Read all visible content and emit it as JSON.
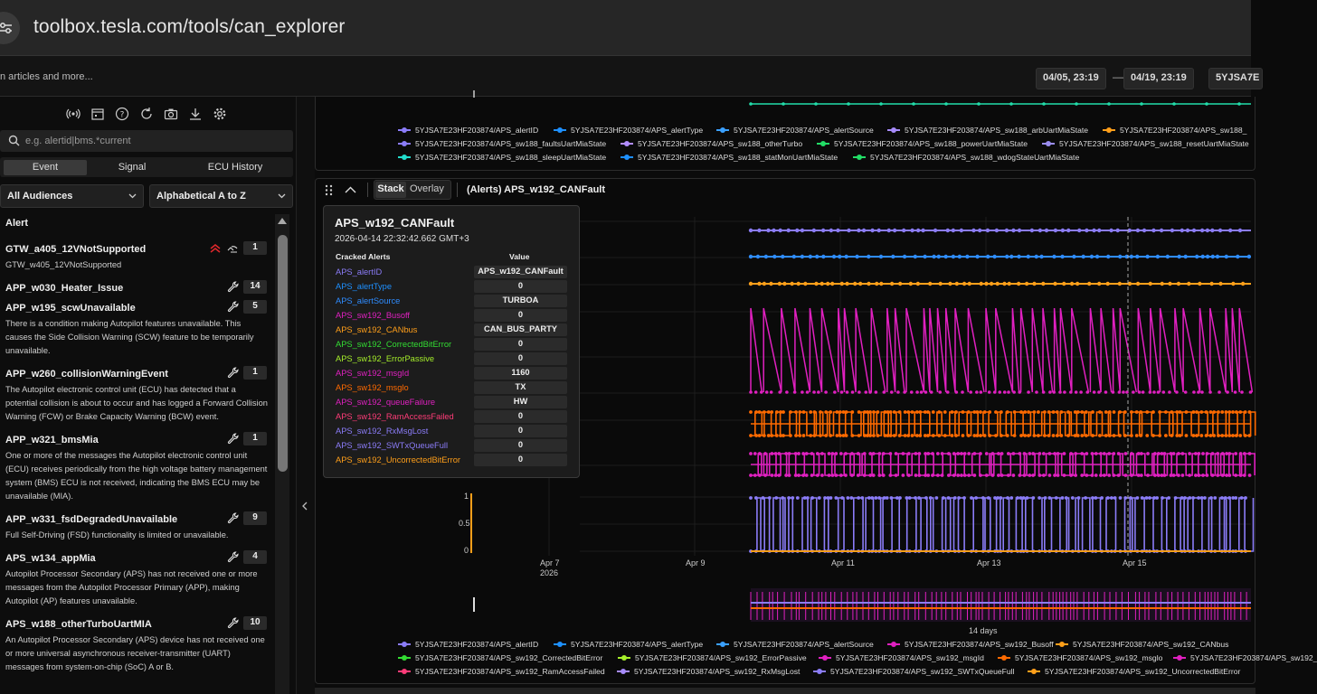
{
  "browser": {
    "url": "toolbox.tesla.com/tools/can_explorer"
  },
  "header": {
    "search_fragment": "n articles and more...",
    "date_from": "04/05, 23:19",
    "date_sep": "—",
    "date_to": "04/19, 23:19",
    "vin_fragment": "5YJSA7E"
  },
  "sidebar": {
    "search_placeholder": "e.g. alertid|bms.*current",
    "tabs": [
      "Event",
      "Signal",
      "ECU History"
    ],
    "audience": "All Audiences",
    "sort": "Alphabetical A to Z",
    "list_header": "Alert",
    "items": [
      {
        "title": "GTW_a405_12VNotSupported",
        "desc": "GTW_w405_12VNotSupported",
        "count": "1",
        "icon": "alert-icons"
      },
      {
        "title": "APP_w030_Heater_Issue",
        "desc": "",
        "count": "14",
        "icon": "wrench-icon"
      },
      {
        "title": "APP_w195_scwUnavailable",
        "desc": "There is a condition making Autopilot features unavailable. This causes the Side Collision Warning (SCW) feature to be temporarily unavailable.",
        "count": "5",
        "icon": "wrench-icon"
      },
      {
        "title": "APP_w260_collisionWarningEvent",
        "desc": "The Autopilot electronic control unit (ECU) has detected that a potential collision is about to occur and has logged a Forward Collision Warning (FCW) or Brake Capacity Warning (BCW) event.",
        "count": "1",
        "icon": "wrench-icon"
      },
      {
        "title": "APP_w321_bmsMia",
        "desc": "One or more of the messages the Autopilot electronic control unit (ECU) receives periodically from the high voltage battery management system (BMS) ECU is not received, indicating the BMS ECU may be unavailable (MIA).",
        "count": "1",
        "icon": "wrench-icon"
      },
      {
        "title": "APP_w331_fsdDegradedUnavailable",
        "desc": "Full Self-Driving (FSD) functionality is limited or unavailable.",
        "count": "9",
        "icon": "wrench-icon"
      },
      {
        "title": "APS_w134_appMia",
        "desc": "Autopilot Processor Secondary (APS) has not received one or more messages from the Autopilot Processor Primary (APP), making Autopilot (AP) features unavailable.",
        "count": "4",
        "icon": "wrench-icon"
      },
      {
        "title": "APS_w188_otherTurboUartMIA",
        "desc": "An Autopilot Processor Secondary (APS) device has not received one or more universal asynchronous receiver-transmitter (UART) messages from system-on-chip (SoC) A or B.",
        "count": "10",
        "icon": "wrench-icon"
      }
    ]
  },
  "panel1": {
    "legend": [
      {
        "label": "5YJSA7E23HF203874/APS_alertID",
        "color": "#8b7cf8"
      },
      {
        "label": "5YJSA7E23HF203874/APS_alertType",
        "color": "#1e90ff"
      },
      {
        "label": "5YJSA7E23HF203874/APS_alertSource",
        "color": "#3aa0ff"
      },
      {
        "label": "5YJSA7E23HF203874/APS_sw188_arbUartMiaState",
        "color": "#a78bfa"
      },
      {
        "label": "5YJSA7E23HF203874/APS_sw188_",
        "color": "#ff9f1a"
      },
      {
        "label": "5YJSA7E23HF203874/APS_sw188_faultsUartMiaState",
        "color": "#8b7cf8"
      },
      {
        "label": "5YJSA7E23HF203874/APS_sw188_otherTurbo",
        "color": "#b18cff"
      },
      {
        "label": "5YJSA7E23HF203874/APS_sw188_powerUartMiaState",
        "color": "#22dd66"
      },
      {
        "label": "5YJSA7E23HF203874/APS_sw188_resetUartMiaState",
        "color": "#9a8cf0"
      },
      {
        "label": "5YJSA7E23HF203874/APS_sw188_sleepUartMiaState",
        "color": "#22ddcc"
      },
      {
        "label": "5YJSA7E23HF203874/APS_sw188_statMonUartMiaState",
        "color": "#1e90ff"
      },
      {
        "label": "5YJSA7E23HF203874/APS_sw188_wdogStateUartMiaState",
        "color": "#22dd66"
      }
    ]
  },
  "panel2": {
    "mode_stack": "Stack",
    "mode_overlay": "Overlay",
    "title": "(Alerts) APS_w192_CANFault",
    "tooltip": {
      "title": "APS_w192_CANFault",
      "timestamp": "2026-04-14 22:32:42.662 GMT+3",
      "col_key": "Cracked Alerts",
      "col_val": "Value",
      "rows": [
        {
          "k": "APS_alertID",
          "v": "APS_w192_CANFault",
          "c": "#8b7cf8"
        },
        {
          "k": "APS_alertType",
          "v": "0",
          "c": "#1e90ff"
        },
        {
          "k": "APS_alertSource",
          "v": "TURBOA",
          "c": "#2f8cff"
        },
        {
          "k": "APS_sw192_Busoff",
          "v": "0",
          "c": "#e020c0"
        },
        {
          "k": "APS_sw192_CANbus",
          "v": "CAN_BUS_PARTY",
          "c": "#ff9f1a"
        },
        {
          "k": "APS_sw192_CorrectedBitError",
          "v": "0",
          "c": "#33dd33"
        },
        {
          "k": "APS_sw192_ErrorPassive",
          "v": "0",
          "c": "#a6f02a"
        },
        {
          "k": "APS_sw192_msgId",
          "v": "1160",
          "c": "#e020c0"
        },
        {
          "k": "APS_sw192_msglo",
          "v": "TX",
          "c": "#ff6a00"
        },
        {
          "k": "APS_sw192_queueFailure",
          "v": "HW",
          "c": "#e020c0"
        },
        {
          "k": "APS_sw192_RamAccessFailed",
          "v": "0",
          "c": "#ff3c78"
        },
        {
          "k": "APS_sw192_RxMsgLost",
          "v": "0",
          "c": "#8b7cf8"
        },
        {
          "k": "APS_sw192_SWTxQueueFull",
          "v": "0",
          "c": "#8b7cf8"
        },
        {
          "k": "APS_sw192_UncorrectedBitError",
          "v": "0",
          "c": "#ff9f1a"
        }
      ]
    },
    "yticks": [
      "1",
      "0.5",
      "0"
    ],
    "xticks": [
      "Apr 7",
      "Apr 9",
      "Apr 11",
      "Apr 13",
      "Apr 15"
    ],
    "xyear": "2026",
    "range_label": "14 days",
    "legend": [
      {
        "label": "5YJSA7E23HF203874/APS_alertID",
        "color": "#8b7cf8"
      },
      {
        "label": "5YJSA7E23HF203874/APS_alertType",
        "color": "#1e90ff"
      },
      {
        "label": "5YJSA7E23HF203874/APS_alertSource",
        "color": "#3aa0ff"
      },
      {
        "label": "5YJSA7E23HF203874/APS_sw192_Busoff",
        "color": "#e020c0"
      },
      {
        "label": "5YJSA7E23HF203874/APS_sw192_CANbus",
        "color": "#ff9f1a"
      },
      {
        "label": "5YJSA7E23HF203874/APS_sw192_CorrectedBitError",
        "color": "#33dd33"
      },
      {
        "label": "5YJSA7E23HF203874/APS_sw192_ErrorPassive",
        "color": "#a6f02a"
      },
      {
        "label": "5YJSA7E23HF203874/APS_sw192_msgId",
        "color": "#e020c0"
      },
      {
        "label": "5YJSA7E23HF203874/APS_sw192_msglo",
        "color": "#ff6a00"
      },
      {
        "label": "5YJSA7E23HF203874/APS_sw192_",
        "color": "#e020c0"
      },
      {
        "label": "5YJSA7E23HF203874/APS_sw192_RamAccessFailed",
        "color": "#ff3c78"
      },
      {
        "label": "5YJSA7E23HF203874/APS_sw192_RxMsgLost",
        "color": "#a78bfa"
      },
      {
        "label": "5YJSA7E23HF203874/APS_sw192_SWTxQueueFull",
        "color": "#8b7cf8"
      },
      {
        "label": "5YJSA7E23HF203874/APS_sw192_UncorrectedBitError",
        "color": "#ff9f1a"
      }
    ]
  }
}
